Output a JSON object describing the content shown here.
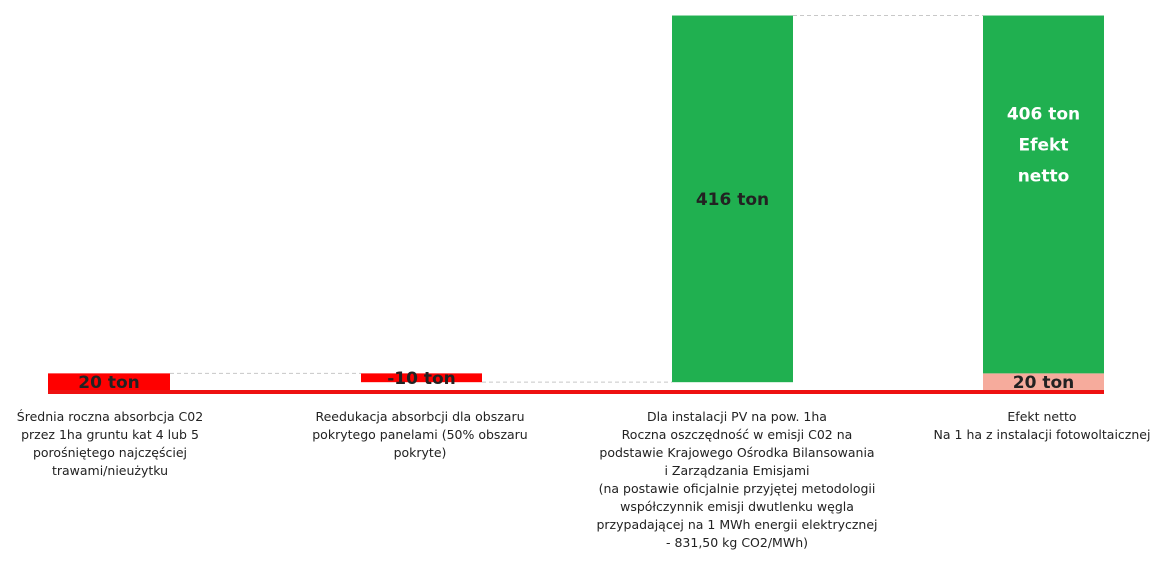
{
  "chart_data": {
    "type": "bar",
    "subtype": "waterfall",
    "unit": "ton",
    "colors": {
      "positive": "#20B050",
      "negative": "#FF0000",
      "base": "#F6AB9C",
      "baseline": "#EE1111",
      "connector": "#C8C8C8"
    },
    "categories": [
      "Średnia roczna absorbcja C02\nprzez 1ha gruntu kat 4 lub 5\nporośniętego najczęściej\ntrawami/nieużytku",
      "Reedukacja absorbcji dla obszaru\npokrytego panelami (50% obszaru\npokryte)",
      "Dla instalacji PV na pow. 1ha\nRoczna oszczędność w emisji C02 na\npodstawie Krajowego Ośrodka Bilansowania\ni Zarządzania Emisjami\n(na postawie oficjalnie przyjętej metodologii\nwspółczynnik emisji dwutlenku węgla\nprzypadającej na 1 MWh energii elektrycznej\n- 831,50 kg CO2/MWh)",
      "Efekt netto\nNa 1 ha z instalacji fotowoltaicznej"
    ],
    "steps": [
      {
        "value": 20,
        "start": 0,
        "end": 20,
        "label": "20 ton",
        "color": "#FF0000"
      },
      {
        "value": -10,
        "start": 20,
        "end": 10,
        "label": "-10 ton",
        "color": "#FF0000"
      },
      {
        "value": 416,
        "start": 10,
        "end": 426,
        "label": "416 ton",
        "color": "#20B050"
      }
    ],
    "total": {
      "segments": [
        {
          "value": 20,
          "label": "20 ton",
          "color": "#F6AB9C"
        },
        {
          "value": 406,
          "label": "406 ton\nEfekt\nnetto",
          "color": "#20B050"
        }
      ]
    },
    "ylim": [
      0,
      430
    ],
    "xlabel": "",
    "ylabel": "",
    "title": ""
  }
}
